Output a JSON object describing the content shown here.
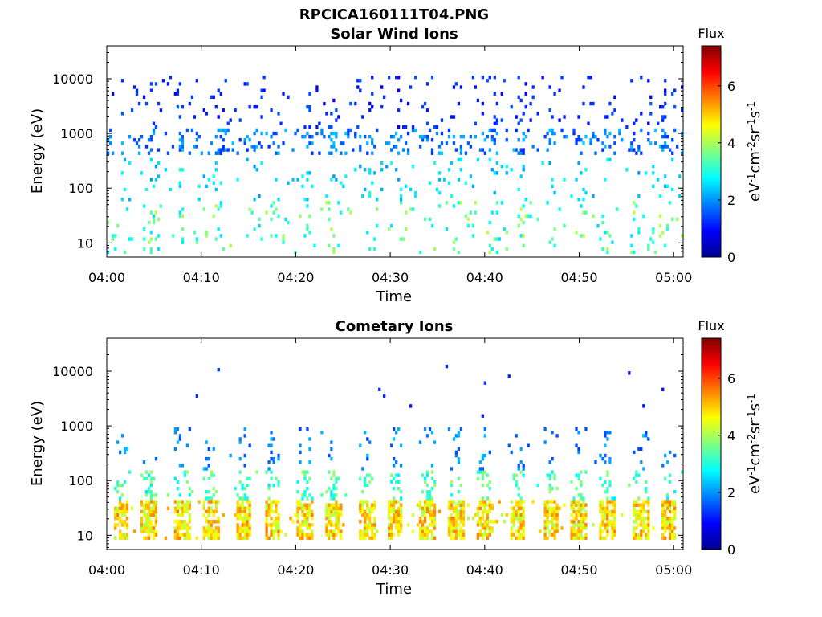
{
  "figure": {
    "title": "RPCICA160111T04.PNG"
  },
  "colormap": [
    "#00008f",
    "#0000ff",
    "#0080ff",
    "#00ffff",
    "#80ff80",
    "#ffff00",
    "#ff8000",
    "#ff0000",
    "#800000"
  ],
  "chart_data": [
    {
      "type": "heatmap",
      "title": "Solar Wind Ions",
      "xlabel": "Time",
      "ylabel": "Energy (eV)",
      "x_range": [
        "04:00",
        "05:01"
      ],
      "x_ticks": [
        "04:00",
        "04:10",
        "04:20",
        "04:30",
        "04:40",
        "04:50",
        "05:00"
      ],
      "y_scale": "log",
      "y_range": [
        5.5,
        40000
      ],
      "y_ticks": [
        "10",
        "100",
        "1000",
        "10000"
      ],
      "colorbar": {
        "label": "Flux",
        "unit": "eV-1cm-2sr-1s-1",
        "range": [
          0,
          7.4
        ],
        "ticks": [
          "0",
          "2",
          "4",
          "6"
        ]
      },
      "pattern": "sparse",
      "clusters": [
        {
          "energy": [
            400,
            1200
          ],
          "flux": [
            1.2,
            2.4
          ],
          "density": 0.35
        },
        {
          "energy": [
            1200,
            12000
          ],
          "flux": [
            0.9,
            1.6
          ],
          "density": 0.12
        },
        {
          "energy": [
            60,
            350
          ],
          "flux": [
            2.0,
            3.0
          ],
          "density": 0.1
        },
        {
          "energy": [
            6,
            60
          ],
          "flux": [
            2.5,
            4.2
          ],
          "density": 0.12
        }
      ],
      "bursts_minutes": [
        5,
        8,
        12,
        16,
        21,
        24,
        28,
        31,
        35,
        37,
        41,
        44,
        47,
        50,
        53,
        56,
        59
      ]
    },
    {
      "type": "heatmap",
      "title": "Cometary Ions",
      "xlabel": "Time",
      "ylabel": "Energy (eV)",
      "x_range": [
        "04:00",
        "05:01"
      ],
      "x_ticks": [
        "04:00",
        "04:10",
        "04:20",
        "04:30",
        "04:40",
        "04:50",
        "05:00"
      ],
      "y_scale": "log",
      "y_range": [
        5.5,
        40000
      ],
      "y_ticks": [
        "10",
        "100",
        "1000",
        "10000"
      ],
      "colorbar": {
        "label": "Flux",
        "unit": "eV-1cm-2sr-1s-1",
        "range": [
          0,
          7.4
        ],
        "ticks": [
          "0",
          "2",
          "4",
          "6"
        ]
      },
      "pattern": "periodic",
      "bursts_minutes": [
        1.5,
        4.5,
        8,
        11,
        14.5,
        17.5,
        21,
        24,
        27.5,
        30.5,
        34,
        37,
        40,
        43.5,
        47,
        50,
        53,
        56.5,
        59.5
      ],
      "clusters": [
        {
          "energy": [
            8,
            45
          ],
          "flux": [
            4.0,
            5.6
          ],
          "density": 0.75
        },
        {
          "energy": [
            45,
            150
          ],
          "flux": [
            2.6,
            4.0
          ],
          "density": 0.35
        },
        {
          "energy": [
            150,
            900
          ],
          "flux": [
            1.4,
            2.4
          ],
          "density": 0.15
        }
      ],
      "sparse_high": {
        "energy": [
          1500,
          20000
        ],
        "flux": [
          1.0,
          1.4
        ]
      }
    }
  ]
}
